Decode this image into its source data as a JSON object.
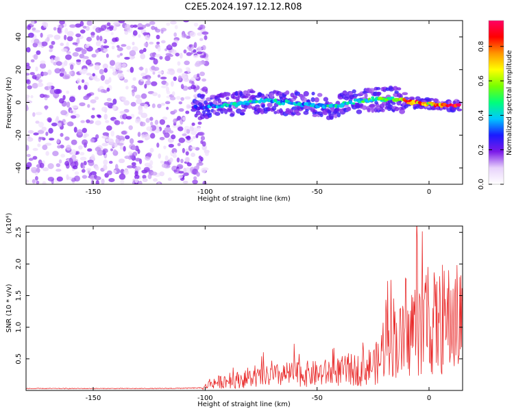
{
  "title": "C2E5.2024.197.12.12.R08",
  "colorbar": {
    "label": "Normalized spectral amplitude",
    "ticks": [
      0.0,
      0.2,
      0.4,
      0.6,
      0.8
    ],
    "range": [
      0,
      0.95
    ],
    "colors": [
      "#ffffff",
      "#e8d2fb",
      "#7a19e8",
      "#1a1aff",
      "#00c8ff",
      "#00ff7a",
      "#78ff00",
      "#ffff00",
      "#ff9600",
      "#ff0000",
      "#ff0064"
    ]
  },
  "chart_data": [
    {
      "type": "heatmap",
      "title": "C2E5.2024.197.12.12.R08",
      "xlabel": "Height of straight line (km)",
      "ylabel": "Frequency (Hz)",
      "xlim": [
        -180,
        15
      ],
      "ylim": [
        -50,
        50
      ],
      "xticks": [
        -150,
        -100,
        -50,
        0
      ],
      "yticks": [
        -40,
        -20,
        0,
        20,
        40
      ],
      "ridge": {
        "x": [
          -105,
          -95,
          -85,
          -75,
          -65,
          -55,
          -45,
          -35,
          -25,
          -15,
          -8,
          0,
          10,
          14
        ],
        "frequency": [
          -3,
          -2,
          -1,
          1,
          0,
          -1,
          -3,
          0,
          2,
          2,
          0,
          -1,
          -2,
          -2
        ],
        "amplitude": [
          0.25,
          0.4,
          0.45,
          0.45,
          0.4,
          0.4,
          0.45,
          0.45,
          0.5,
          0.55,
          0.9,
          0.7,
          0.95,
          0.95
        ]
      },
      "noise_region": {
        "x": [
          -180,
          -105
        ],
        "frequency": [
          -50,
          50
        ],
        "amplitude": [
          0.05,
          0.2
        ]
      }
    },
    {
      "type": "line",
      "xlabel": "Height of straight line (km)",
      "ylabel": "SNR (10 * v/v)",
      "y_multiplier": "(x10⁴)",
      "xlim": [
        -180,
        15
      ],
      "ylim": [
        0,
        2.6
      ],
      "xticks": [
        -150,
        -100,
        -50,
        0
      ],
      "yticks": [
        0.5,
        1.0,
        1.5,
        2.0,
        2.5
      ],
      "series": [
        {
          "color": "#e82828",
          "x": [
            -180,
            -150,
            -120,
            -101,
            -98,
            -90,
            -80,
            -70,
            -60,
            -50,
            -40,
            -30,
            -22,
            -18,
            -15,
            -10,
            -8,
            -5,
            0,
            5,
            10,
            15
          ],
          "y": [
            0.03,
            0.03,
            0.03,
            0.04,
            0.15,
            0.2,
            0.25,
            0.3,
            0.35,
            0.35,
            0.4,
            0.45,
            0.6,
            1.5,
            1.1,
            0.9,
            1.3,
            1.4,
            1.4,
            1.4,
            1.5,
            1.5
          ]
        }
      ]
    }
  ]
}
